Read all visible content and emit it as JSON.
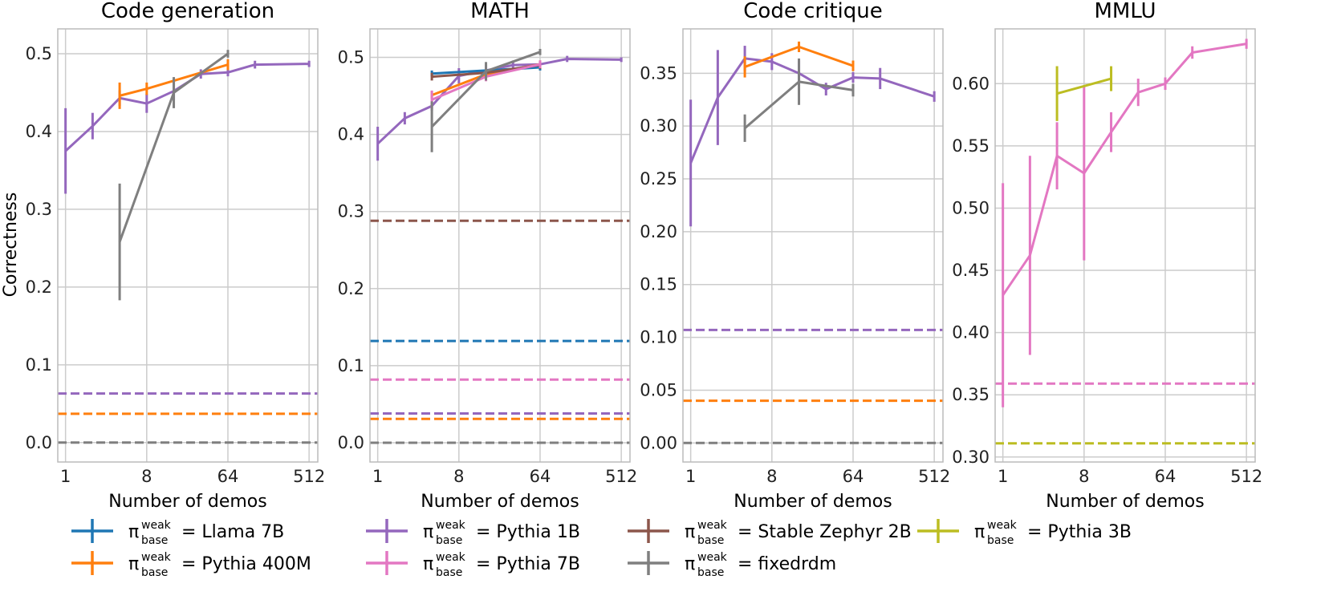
{
  "ylabel": "Correctness",
  "legend_prefix": "π",
  "legend_sup": "weak",
  "legend_sub": "base",
  "legend_eq": "=",
  "colors": {
    "Llama 7B": "#1f77b4",
    "Pythia 400M": "#ff7f0e",
    "Pythia 1B": "#9467bd",
    "Pythia 7B": "#e377c2",
    "Stable Zephyr 2B": "#8c564b",
    "fixedrdm": "#7f7f7f",
    "Pythia 3B": "#bcbd22"
  },
  "legend": [
    {
      "name": "Llama 7B"
    },
    {
      "name": "Pythia 1B"
    },
    {
      "name": "Stable Zephyr 2B"
    },
    {
      "name": "Pythia 3B"
    },
    {
      "name": "Pythia 400M"
    },
    {
      "name": "Pythia 7B"
    },
    {
      "name": "fixedrdm"
    }
  ],
  "chart_data": [
    {
      "type": "line",
      "title": "Code generation",
      "xlabel": "Number of demos",
      "ylabel": "Correctness",
      "xscale": "log2",
      "xticks": [
        1,
        8,
        64,
        512
      ],
      "xlim": [
        0.82,
        640
      ],
      "ylim": [
        -0.025,
        0.532
      ],
      "yticks": [
        0.0,
        0.1,
        0.2,
        0.3,
        0.4,
        0.5
      ],
      "ytick_labels": [
        "0.0",
        "0.1",
        "0.2",
        "0.3",
        "0.4",
        "0.5"
      ],
      "series": [
        {
          "name": "Pythia 1B",
          "x": [
            1,
            2,
            4,
            8,
            16,
            32,
            64,
            128,
            512
          ],
          "y": [
            0.375,
            0.407,
            0.443,
            0.436,
            0.452,
            0.474,
            0.476,
            0.486,
            0.487
          ],
          "err": [
            0.055,
            0.017,
            0.01,
            0.012,
            0.012,
            0.006,
            0.005,
            0.005,
            0.004
          ]
        },
        {
          "name": "Pythia 400M",
          "x": [
            4,
            8,
            64
          ],
          "y": [
            0.446,
            0.455,
            0.486
          ],
          "err": [
            0.017,
            0.008,
            0.007
          ]
        },
        {
          "name": "fixedrdm",
          "x": [
            4,
            16,
            64
          ],
          "y": [
            0.258,
            0.45,
            0.5
          ],
          "err": [
            0.075,
            0.02,
            0.005
          ]
        }
      ],
      "baselines": [
        {
          "name": "Pythia 1B",
          "y": 0.063
        },
        {
          "name": "Pythia 400M",
          "y": 0.037
        },
        {
          "name": "fixedrdm",
          "y": 0.0
        }
      ]
    },
    {
      "type": "line",
      "title": "MATH",
      "xlabel": "Number of demos",
      "ylabel": "",
      "xscale": "log2",
      "xticks": [
        1,
        8,
        64,
        512
      ],
      "xlim": [
        0.82,
        640
      ],
      "ylim": [
        -0.025,
        0.537
      ],
      "yticks": [
        0.0,
        0.1,
        0.2,
        0.3,
        0.4,
        0.5
      ],
      "ytick_labels": [
        "0.0",
        "0.1",
        "0.2",
        "0.3",
        "0.4",
        "0.5"
      ],
      "series": [
        {
          "name": "Pythia 1B",
          "x": [
            1,
            2,
            4,
            8,
            16,
            32,
            64,
            128,
            512
          ],
          "y": [
            0.388,
            0.421,
            0.437,
            0.476,
            0.483,
            0.49,
            0.491,
            0.498,
            0.497
          ],
          "err": [
            0.022,
            0.008,
            0.006,
            0.01,
            0.008,
            0.006,
            0.005,
            0.004,
            0.003
          ]
        },
        {
          "name": "Llama 7B",
          "x": [
            4,
            64
          ],
          "y": [
            0.479,
            0.487
          ],
          "err": [
            0.004,
            0.004
          ]
        },
        {
          "name": "Pythia 400M",
          "x": [
            4,
            16,
            64
          ],
          "y": [
            0.451,
            0.478,
            0.491
          ],
          "err": [
            0.005,
            0.005,
            0.005
          ]
        },
        {
          "name": "Stable Zephyr 2B",
          "x": [
            4,
            16,
            64
          ],
          "y": [
            0.475,
            0.48,
            0.49
          ],
          "err": [
            0.005,
            0.005,
            0.005
          ]
        },
        {
          "name": "Pythia 7B",
          "x": [
            4,
            16,
            64
          ],
          "y": [
            0.445,
            0.475,
            0.491
          ],
          "err": [
            0.012,
            0.006,
            0.005
          ]
        },
        {
          "name": "fixedrdm",
          "x": [
            4,
            16,
            64
          ],
          "y": [
            0.41,
            0.482,
            0.507
          ],
          "err": [
            0.033,
            0.012,
            0.004
          ]
        }
      ],
      "baselines": [
        {
          "name": "Stable Zephyr 2B",
          "y": 0.288
        },
        {
          "name": "Llama 7B",
          "y": 0.132
        },
        {
          "name": "Pythia 7B",
          "y": 0.082
        },
        {
          "name": "Pythia 1B",
          "y": 0.038
        },
        {
          "name": "Pythia 400M",
          "y": 0.031
        },
        {
          "name": "fixedrdm",
          "y": 0.0
        }
      ]
    },
    {
      "type": "line",
      "title": "Code critique",
      "xlabel": "Number of demos",
      "ylabel": "",
      "xscale": "log2",
      "xticks": [
        1,
        8,
        64,
        512
      ],
      "xlim": [
        0.82,
        640
      ],
      "ylim": [
        -0.018,
        0.392
      ],
      "yticks": [
        0.0,
        0.05,
        0.1,
        0.15,
        0.2,
        0.25,
        0.3,
        0.35
      ],
      "ytick_labels": [
        "0.00",
        "0.05",
        "0.10",
        "0.15",
        "0.20",
        "0.25",
        "0.30",
        "0.35"
      ],
      "series": [
        {
          "name": "Pythia 1B",
          "x": [
            1,
            2,
            4,
            8,
            16,
            32,
            64,
            128,
            512
          ],
          "y": [
            0.265,
            0.327,
            0.364,
            0.361,
            0.35,
            0.335,
            0.346,
            0.345,
            0.328
          ],
          "err": [
            0.06,
            0.045,
            0.012,
            0.008,
            0.012,
            0.006,
            0.005,
            0.01,
            0.005
          ]
        },
        {
          "name": "Pythia 400M",
          "x": [
            4,
            16,
            64
          ],
          "y": [
            0.356,
            0.375,
            0.357
          ],
          "err": [
            0.01,
            0.005,
            0.005
          ]
        },
        {
          "name": "fixedrdm",
          "x": [
            4,
            16,
            64
          ],
          "y": [
            0.298,
            0.342,
            0.334
          ],
          "err": [
            0.013,
            0.022,
            0.006
          ]
        }
      ],
      "baselines": [
        {
          "name": "Pythia 1B",
          "y": 0.107
        },
        {
          "name": "Pythia 400M",
          "y": 0.04
        },
        {
          "name": "fixedrdm",
          "y": 0.0
        }
      ]
    },
    {
      "type": "line",
      "title": "MMLU",
      "xlabel": "Number of demos",
      "ylabel": "",
      "xscale": "log2",
      "xticks": [
        1,
        8,
        64,
        512
      ],
      "xlim": [
        0.82,
        640
      ],
      "ylim": [
        0.296,
        0.644
      ],
      "yticks": [
        0.3,
        0.35,
        0.4,
        0.45,
        0.5,
        0.55,
        0.6
      ],
      "ytick_labels": [
        "0.30",
        "0.35",
        "0.40",
        "0.45",
        "0.50",
        "0.55",
        "0.60"
      ],
      "series": [
        {
          "name": "Pythia 7B",
          "x": [
            1,
            2,
            4,
            8,
            16,
            32,
            64,
            128,
            512
          ],
          "y": [
            0.43,
            0.462,
            0.542,
            0.528,
            0.561,
            0.593,
            0.6,
            0.625,
            0.632
          ],
          "err": [
            0.09,
            0.08,
            0.027,
            0.07,
            0.016,
            0.011,
            0.005,
            0.005,
            0.004
          ]
        },
        {
          "name": "Pythia 3B",
          "x": [
            4,
            16
          ],
          "y": [
            0.592,
            0.604
          ],
          "err": [
            0.022,
            0.01
          ]
        }
      ],
      "baselines": [
        {
          "name": "Pythia 7B",
          "y": 0.359
        },
        {
          "name": "Pythia 3B",
          "y": 0.311
        }
      ]
    }
  ]
}
